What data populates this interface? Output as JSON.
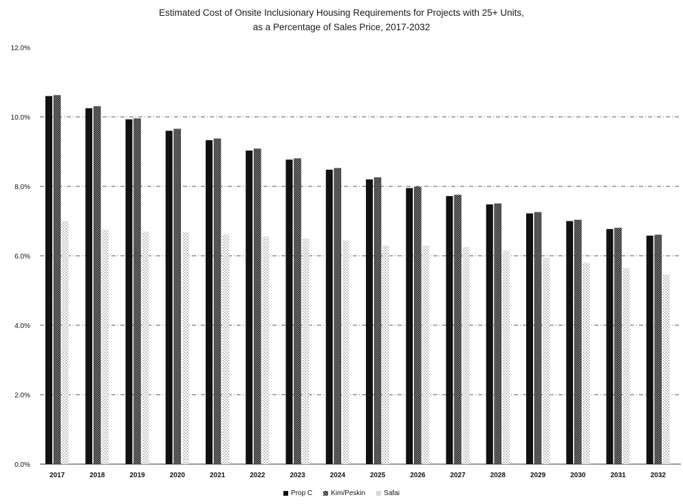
{
  "chart_data": {
    "type": "bar",
    "title": "Estimated Cost of  Onsite Inclusionary Housing Requirements for Projects with 25+ Units,",
    "subtitle": "as a Percentage of Sales Price, 2017-2032",
    "xlabel": "",
    "ylabel": "",
    "ylim": [
      0,
      12
    ],
    "y_ticks": [
      "0.0%",
      "2.0%",
      "4.0%",
      "6.0%",
      "8.0%",
      "10.0%",
      "12.0%"
    ],
    "grid": true,
    "legend_position": "bottom",
    "categories": [
      "2017",
      "2018",
      "2019",
      "2020",
      "2021",
      "2022",
      "2023",
      "2024",
      "2025",
      "2026",
      "2027",
      "2028",
      "2029",
      "2030",
      "2031",
      "2032"
    ],
    "series": [
      {
        "name": "Prop C",
        "color": "#111111",
        "values": [
          10.6,
          10.25,
          9.93,
          9.6,
          9.33,
          9.03,
          8.77,
          8.48,
          8.2,
          7.95,
          7.72,
          7.48,
          7.22,
          7.0,
          6.77,
          6.58
        ]
      },
      {
        "name": "Kim/Peskin",
        "color": "#4a4a4a",
        "values": [
          10.62,
          10.3,
          9.95,
          9.65,
          9.37,
          9.08,
          8.8,
          8.52,
          8.25,
          7.98,
          7.75,
          7.5,
          7.25,
          7.03,
          6.8,
          6.6
        ]
      },
      {
        "name": "Safai",
        "color": "#cfcfcf",
        "values": [
          7.0,
          6.75,
          6.7,
          6.68,
          6.62,
          6.55,
          6.5,
          6.45,
          6.3,
          6.3,
          6.25,
          6.15,
          5.95,
          5.8,
          5.65,
          5.45
        ]
      }
    ]
  }
}
